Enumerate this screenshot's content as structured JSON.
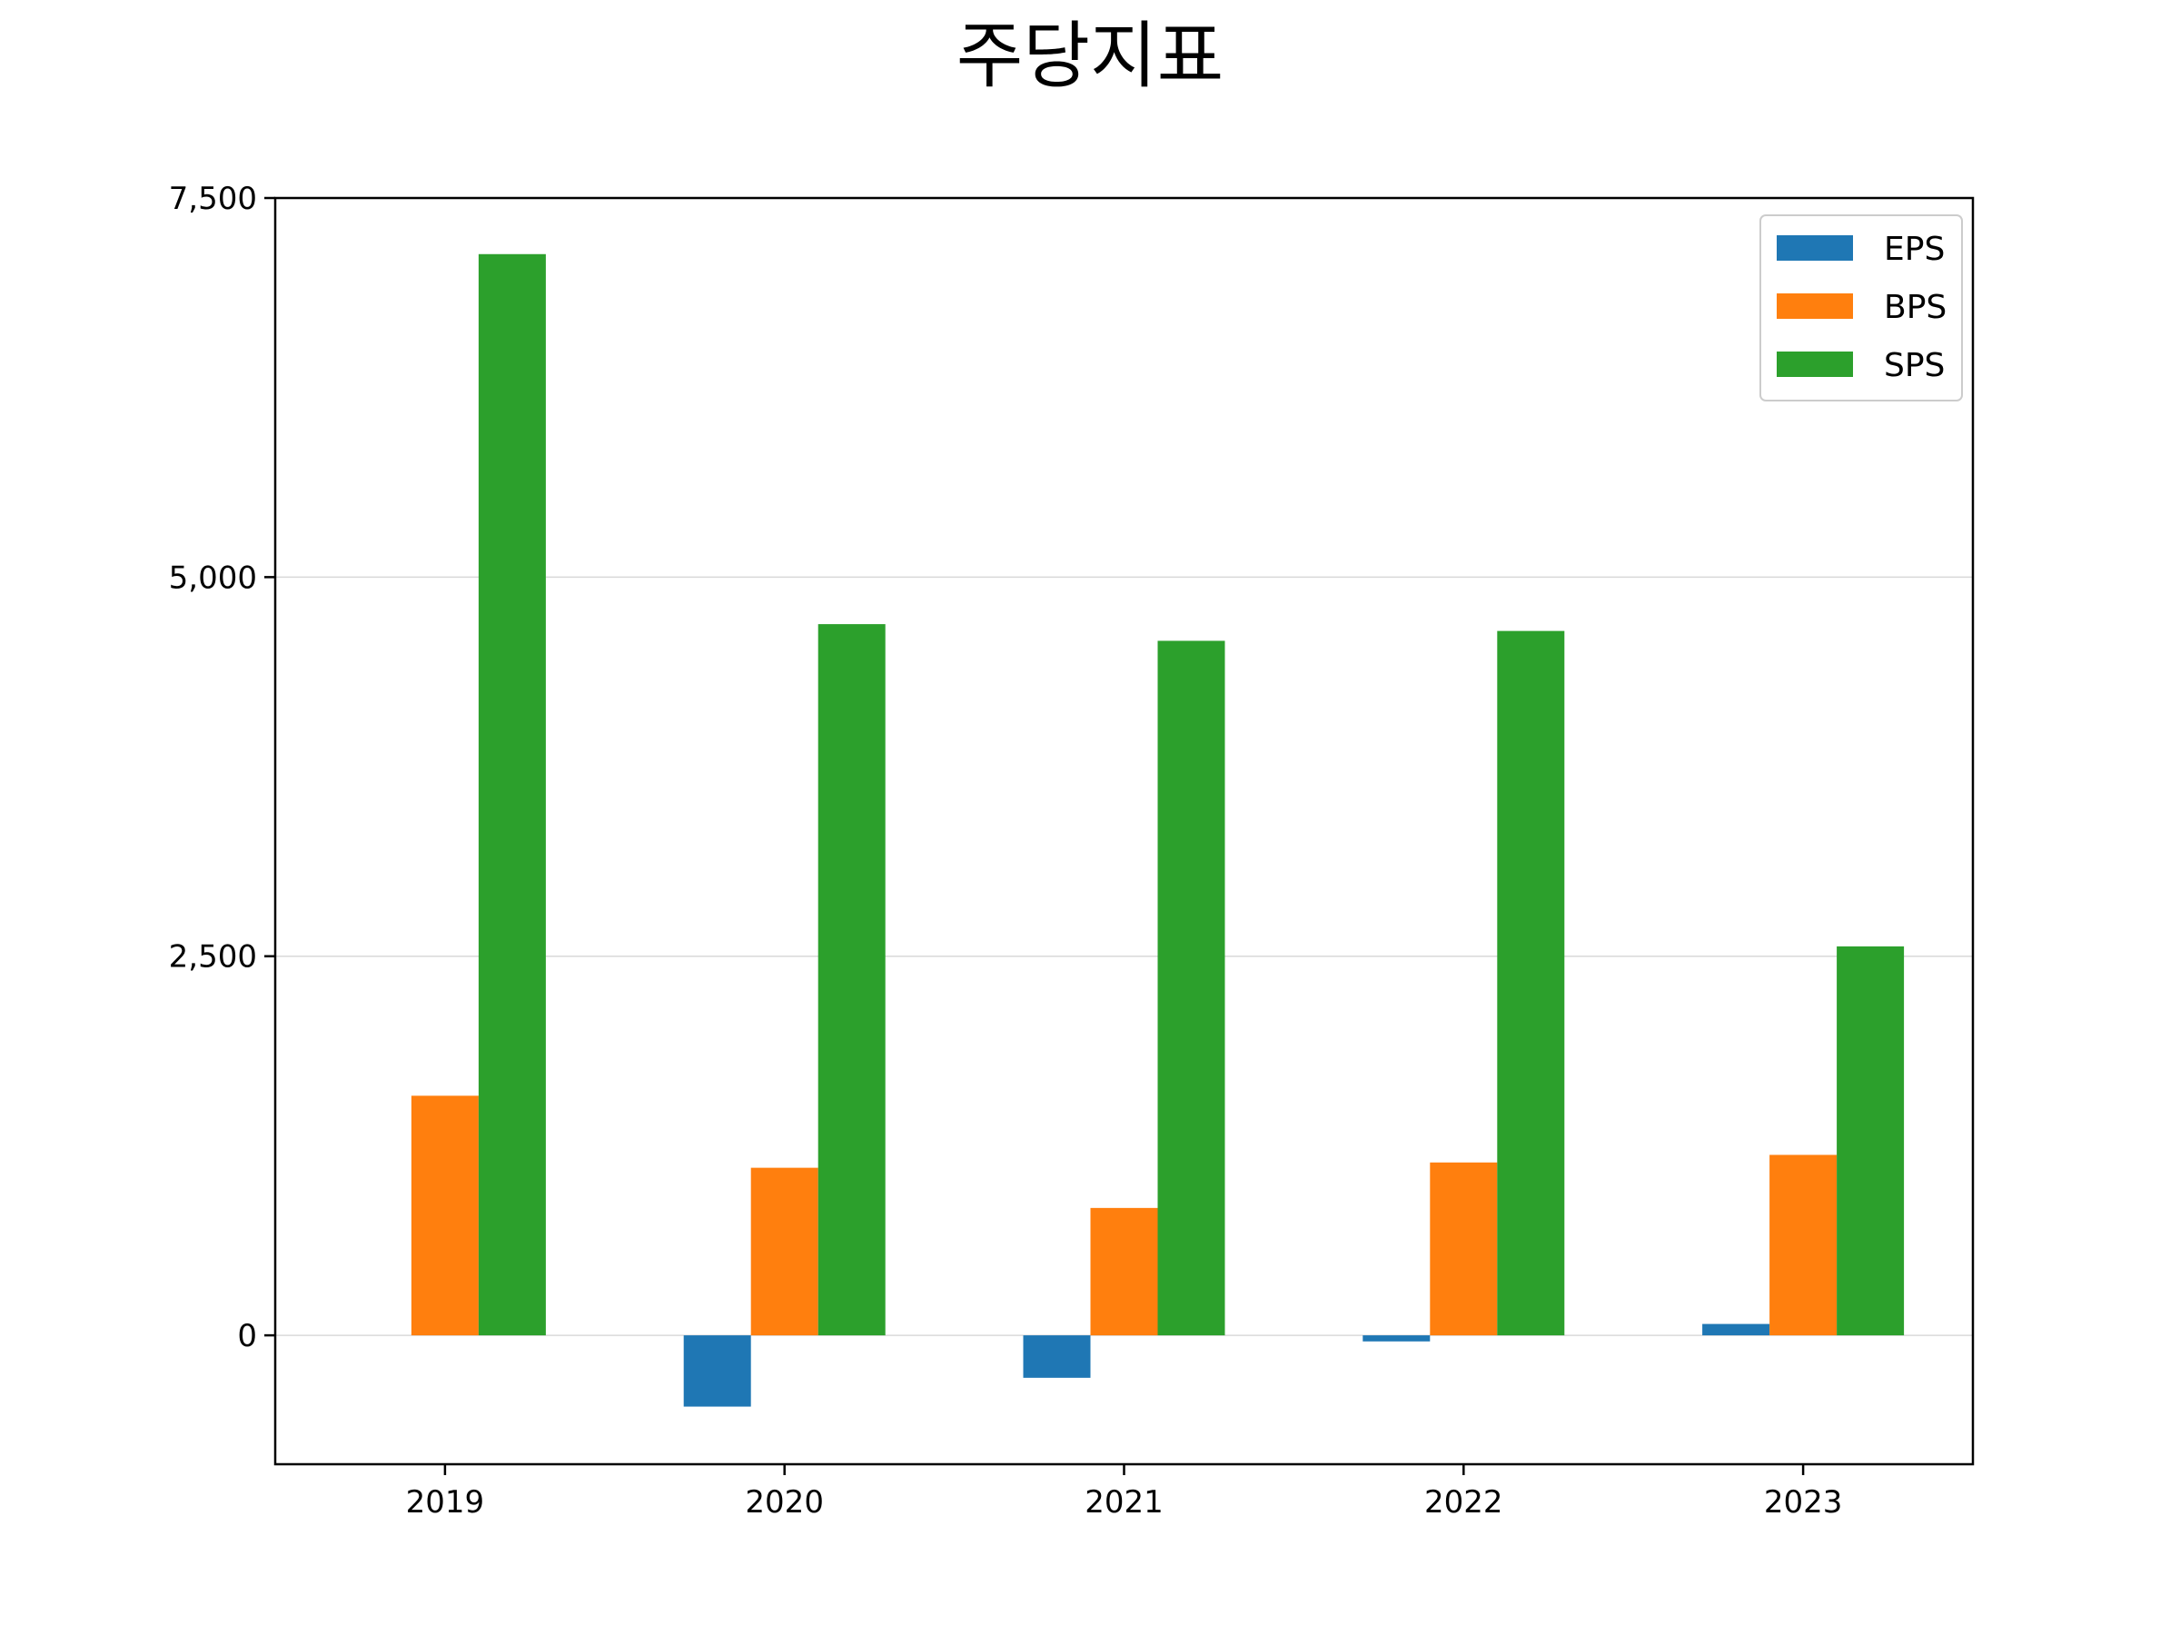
{
  "chart_data": {
    "type": "bar",
    "title": "주당지표",
    "xlabel": "",
    "ylabel": "",
    "categories": [
      "2019",
      "2020",
      "2021",
      "2022",
      "2023"
    ],
    "series": [
      {
        "name": "EPS",
        "color": "#1f77b4",
        "values": [
          0,
          -470,
          -280,
          -40,
          75
        ]
      },
      {
        "name": "BPS",
        "color": "#ff7f0e",
        "values": [
          1580,
          1105,
          840,
          1140,
          1190
        ]
      },
      {
        "name": "SPS",
        "color": "#2ca02c",
        "values": [
          7130,
          4690,
          4580,
          4645,
          2565
        ]
      }
    ],
    "ylim": [
      -850,
      7500
    ],
    "yticks": [
      0,
      2500,
      5000,
      7500
    ],
    "ytick_labels": [
      "0",
      "2,500",
      "5,000",
      "7,500"
    ],
    "grid": "horizontal",
    "legend_position": "top-right"
  }
}
